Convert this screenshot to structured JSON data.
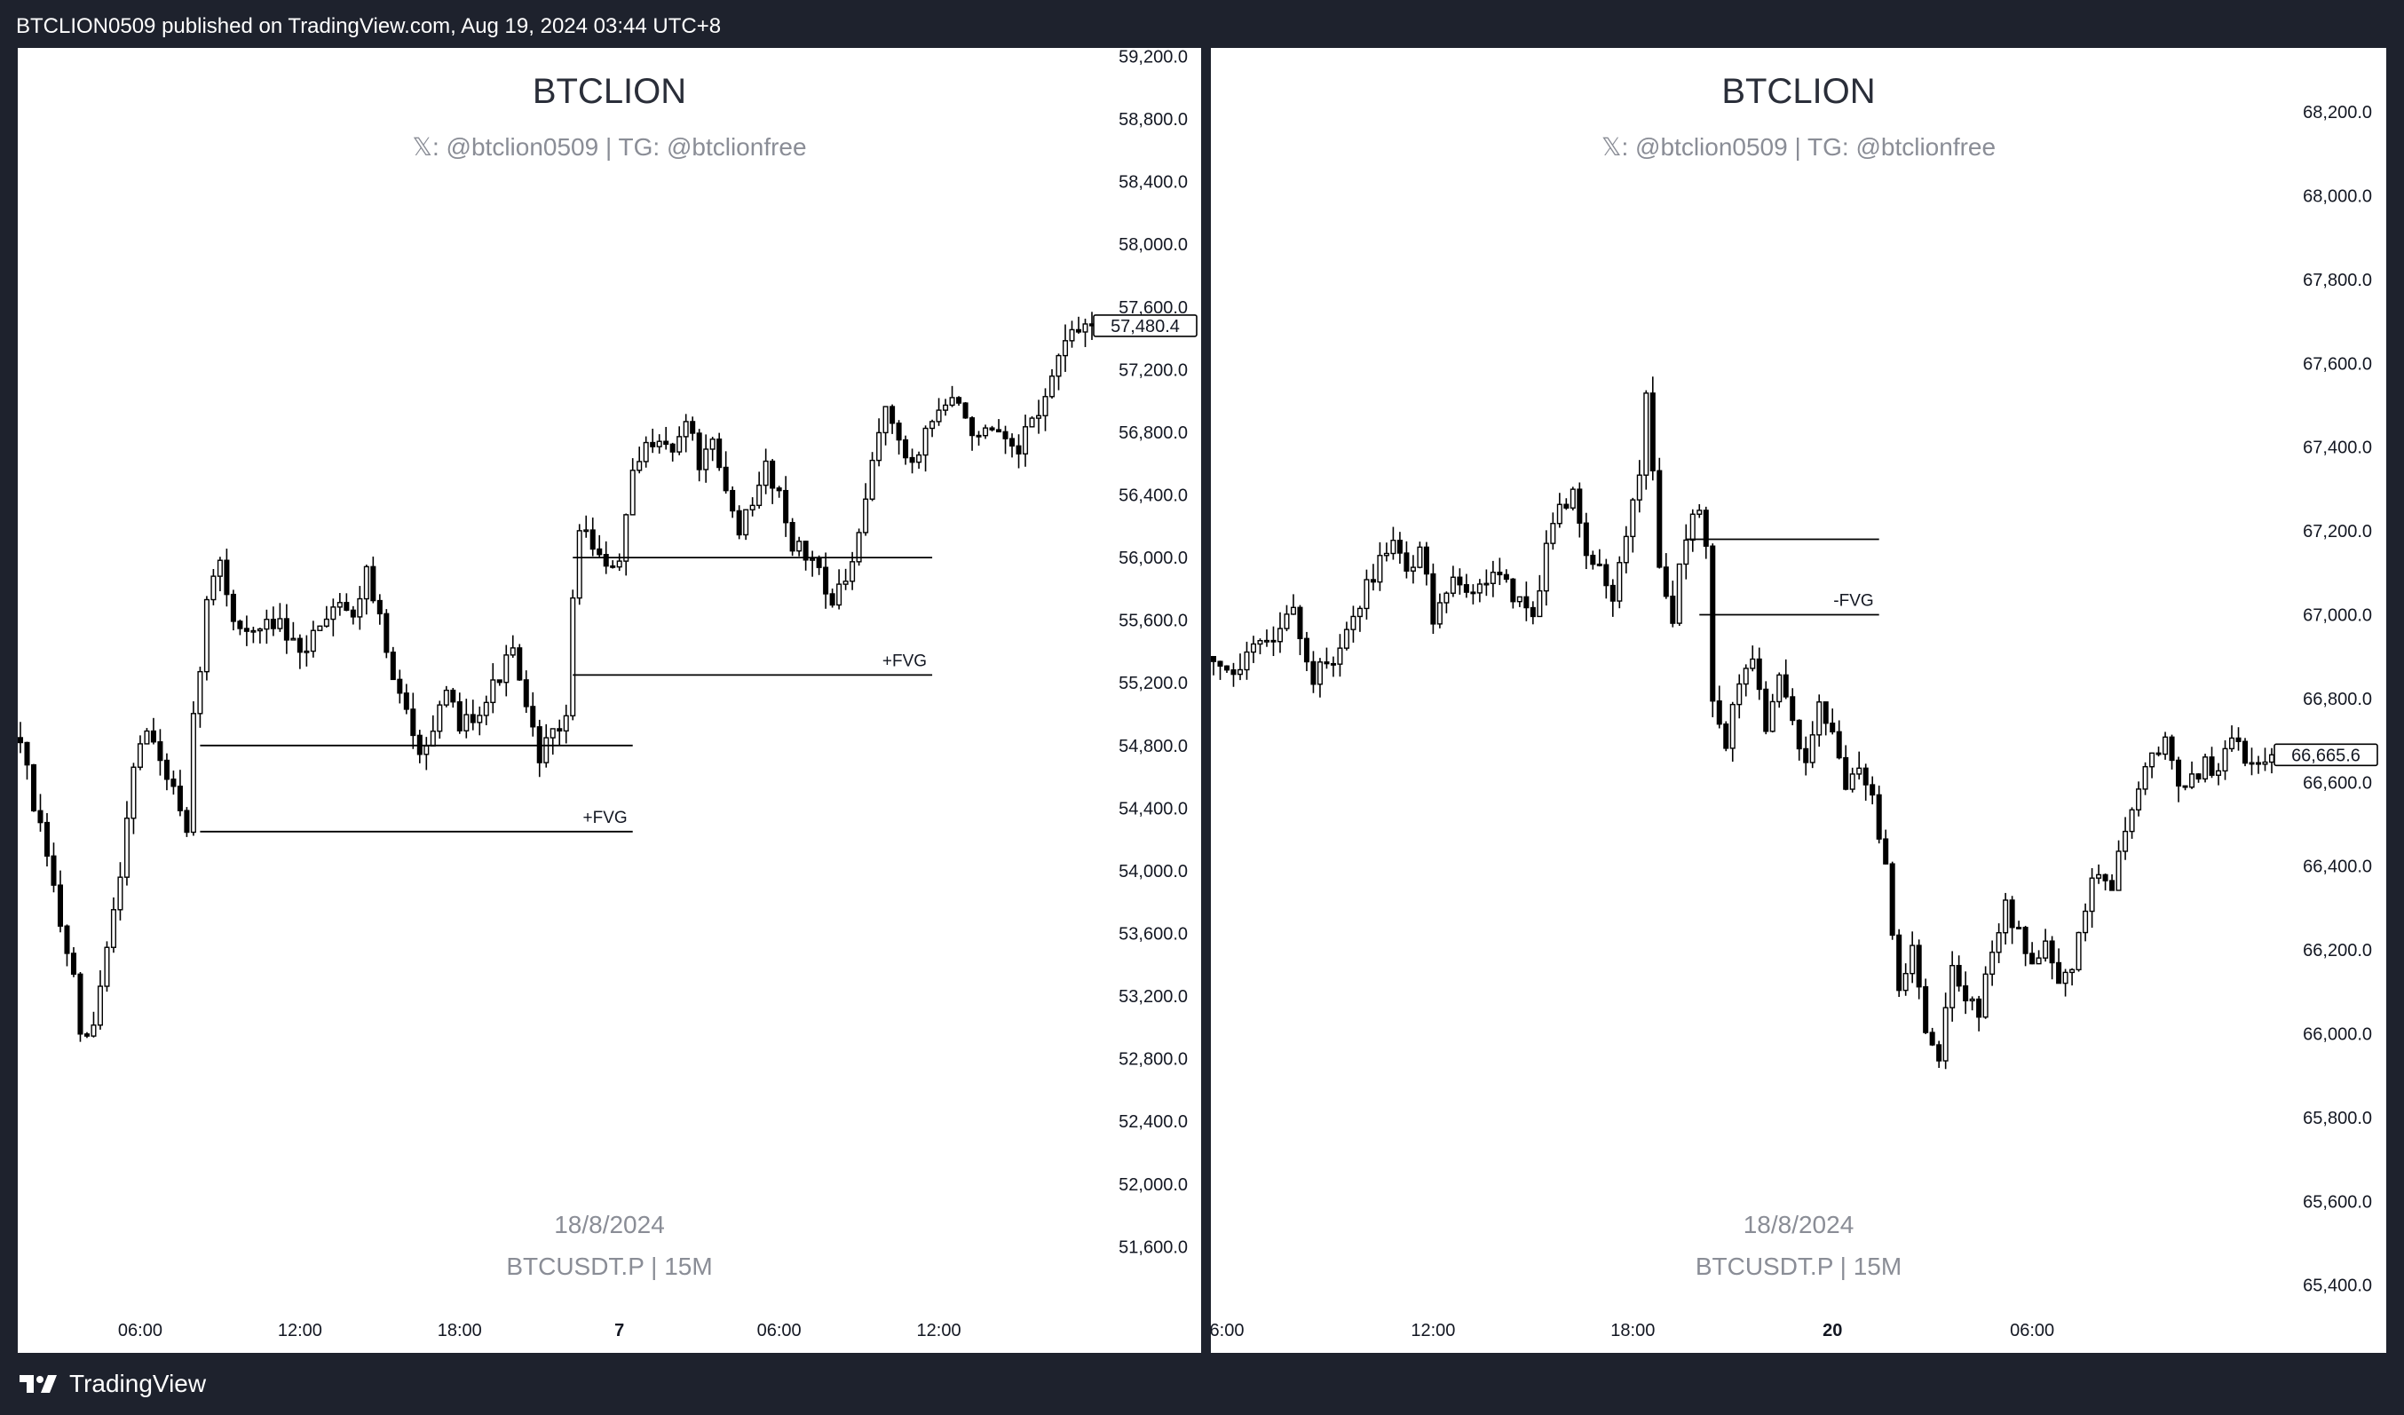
{
  "header": {
    "publish_text": "BTCLION0509 published on TradingView.com, Aug 19, 2024 03:44 UTC+8"
  },
  "footer": {
    "brand": "TradingView",
    "logo_icon": "tradingview-logo-icon"
  },
  "panels": [
    {
      "watermark_title": "BTCLION",
      "watermark_sub": "𝕏: @btclion0509 | TG: @btclionfree",
      "watermark_date": "18/8/2024",
      "watermark_symbol": "BTCUSDT.P | 15M",
      "price_label": "57,480.4",
      "fvg_labels": [
        "+FVG",
        "+FVG"
      ]
    },
    {
      "watermark_title": "BTCLION",
      "watermark_sub": "𝕏: @btclion0509 | TG: @btclionfree",
      "watermark_date": "18/8/2024",
      "watermark_symbol": "BTCUSDT.P | 15M",
      "price_label": "66,665.6",
      "fvg_labels": [
        "-FVG"
      ]
    }
  ],
  "chart_data": [
    {
      "type": "candlestick",
      "symbol": "BTCUSDT.P",
      "timeframe": "15M",
      "y_ticks": [
        "59,200.0",
        "58,800.0",
        "58,400.0",
        "58,000.0",
        "57,600.0",
        "57,200.0",
        "56,800.0",
        "56,400.0",
        "56,000.0",
        "55,600.0",
        "55,200.0",
        "54,800.0",
        "54,400.0",
        "54,000.0",
        "53,600.0",
        "53,200.0",
        "52,800.0",
        "52,400.0",
        "52,000.0",
        "51,600.0"
      ],
      "y_tick_values": [
        59200,
        58800,
        58400,
        58000,
        57600,
        57200,
        56800,
        56400,
        56000,
        55600,
        55200,
        54800,
        54400,
        54000,
        53600,
        53200,
        52800,
        52400,
        52000,
        51600
      ],
      "x_ticks": [
        "06:00",
        "12:00",
        "18:00",
        "7",
        "06:00",
        "12:00"
      ],
      "x_tick_bold": [
        false,
        false,
        false,
        true,
        false,
        false
      ],
      "ylim": [
        51500,
        59220
      ],
      "last_price": 57480.4,
      "bar_count": 162,
      "bar_range": [
        0,
        161
      ],
      "x_tick_bars": [
        18,
        42,
        66,
        90,
        114,
        138
      ],
      "close_path": [
        [
          0,
          54850
        ],
        [
          2,
          54400
        ],
        [
          4,
          54100
        ],
        [
          6,
          53650
        ],
        [
          8,
          53300
        ],
        [
          9,
          52900
        ],
        [
          11,
          53000
        ],
        [
          13,
          53500
        ],
        [
          15,
          54000
        ],
        [
          17,
          54700
        ],
        [
          19,
          54900
        ],
        [
          21,
          54700
        ],
        [
          23,
          54500
        ],
        [
          25,
          54200
        ],
        [
          26,
          54950
        ],
        [
          28,
          55700
        ],
        [
          30,
          56000
        ],
        [
          32,
          55600
        ],
        [
          35,
          55500
        ],
        [
          38,
          55600
        ],
        [
          40,
          55500
        ],
        [
          42,
          55350
        ],
        [
          45,
          55600
        ],
        [
          48,
          55750
        ],
        [
          50,
          55600
        ],
        [
          52,
          55950
        ],
        [
          54,
          55600
        ],
        [
          56,
          55200
        ],
        [
          58,
          55000
        ],
        [
          60,
          54800
        ],
        [
          62,
          54900
        ],
        [
          64,
          55100
        ],
        [
          66,
          54950
        ],
        [
          68,
          55000
        ],
        [
          70,
          55100
        ],
        [
          72,
          55250
        ],
        [
          74,
          55400
        ],
        [
          76,
          55000
        ],
        [
          78,
          54750
        ],
        [
          80,
          54850
        ],
        [
          82,
          55000
        ],
        [
          83,
          55700
        ],
        [
          84,
          56200
        ],
        [
          86,
          56100
        ],
        [
          88,
          55900
        ],
        [
          90,
          56000
        ],
        [
          92,
          56500
        ],
        [
          94,
          56700
        ],
        [
          96,
          56800
        ],
        [
          98,
          56650
        ],
        [
          100,
          56900
        ],
        [
          102,
          56600
        ],
        [
          104,
          56700
        ],
        [
          106,
          56400
        ],
        [
          108,
          56200
        ],
        [
          110,
          56300
        ],
        [
          112,
          56600
        ],
        [
          114,
          56400
        ],
        [
          116,
          56100
        ],
        [
          118,
          56000
        ],
        [
          120,
          55950
        ],
        [
          122,
          55700
        ],
        [
          124,
          55850
        ],
        [
          126,
          56100
        ],
        [
          128,
          56600
        ],
        [
          130,
          57000
        ],
        [
          132,
          56700
        ],
        [
          134,
          56600
        ],
        [
          136,
          56800
        ],
        [
          138,
          56950
        ],
        [
          140,
          57000
        ],
        [
          142,
          56900
        ],
        [
          144,
          56750
        ],
        [
          146,
          56800
        ],
        [
          148,
          56700
        ],
        [
          150,
          56650
        ],
        [
          152,
          56900
        ],
        [
          154,
          57000
        ],
        [
          156,
          57300
        ],
        [
          158,
          57400
        ],
        [
          160,
          57480
        ],
        [
          161,
          57480
        ]
      ],
      "lines": [
        {
          "price": 56000,
          "from_bar": 83,
          "to_bar": 137
        },
        {
          "price": 55250,
          "from_bar": 83,
          "to_bar": 137,
          "label": "+FVG"
        },
        {
          "price": 54800,
          "from_bar": 27,
          "to_bar": 92
        },
        {
          "price": 54250,
          "from_bar": 27,
          "to_bar": 92,
          "label": "+FVG"
        }
      ]
    },
    {
      "type": "candlestick",
      "symbol": "BTCUSDT.P",
      "timeframe": "15M",
      "y_ticks": [
        "68,200.0",
        "68,000.0",
        "67,800.0",
        "67,600.0",
        "67,400.0",
        "67,200.0",
        "67,000.0",
        "66,800.0",
        "66,600.0",
        "66,400.0",
        "66,200.0",
        "66,000.0",
        "65,800.0",
        "65,600.0",
        "65,400.0"
      ],
      "y_tick_values": [
        68200,
        68000,
        67800,
        67600,
        67400,
        67200,
        67000,
        66800,
        66600,
        66400,
        66200,
        66000,
        65800,
        65600,
        65400
      ],
      "x_ticks": [
        "6:00",
        "12:00",
        "18:00",
        "20",
        "06:00"
      ],
      "x_tick_bold": [
        false,
        false,
        false,
        true,
        false
      ],
      "ylim": [
        65340,
        68340
      ],
      "last_price": 66665.6,
      "bar_count": 160,
      "bar_range": [
        0,
        159
      ],
      "x_tick_bars": [
        2,
        33,
        63,
        93,
        123
      ],
      "close_path": [
        [
          0,
          66900
        ],
        [
          3,
          66850
        ],
        [
          6,
          66950
        ],
        [
          9,
          66950
        ],
        [
          12,
          67000
        ],
        [
          15,
          66850
        ],
        [
          18,
          66900
        ],
        [
          21,
          67000
        ],
        [
          24,
          67100
        ],
        [
          27,
          67200
        ],
        [
          29,
          67100
        ],
        [
          31,
          67150
        ],
        [
          33,
          67000
        ],
        [
          36,
          67100
        ],
        [
          39,
          67050
        ],
        [
          42,
          67100
        ],
        [
          45,
          67050
        ],
        [
          48,
          67000
        ],
        [
          50,
          67150
        ],
        [
          52,
          67250
        ],
        [
          54,
          67300
        ],
        [
          56,
          67150
        ],
        [
          58,
          67100
        ],
        [
          60,
          67050
        ],
        [
          62,
          67200
        ],
        [
          64,
          67350
        ],
        [
          65,
          67550
        ],
        [
          67,
          67100
        ],
        [
          69,
          67000
        ],
        [
          71,
          67200
        ],
        [
          73,
          67250
        ],
        [
          74,
          67150
        ],
        [
          75,
          66800
        ],
        [
          77,
          66700
        ],
        [
          79,
          66850
        ],
        [
          81,
          66900
        ],
        [
          83,
          66700
        ],
        [
          85,
          66850
        ],
        [
          87,
          66750
        ],
        [
          89,
          66650
        ],
        [
          91,
          66800
        ],
        [
          93,
          66700
        ],
        [
          95,
          66600
        ],
        [
          97,
          66650
        ],
        [
          99,
          66550
        ],
        [
          101,
          66400
        ],
        [
          103,
          66100
        ],
        [
          105,
          66200
        ],
        [
          107,
          66000
        ],
        [
          109,
          65950
        ],
        [
          111,
          66150
        ],
        [
          113,
          66100
        ],
        [
          115,
          66050
        ],
        [
          117,
          66200
        ],
        [
          119,
          66300
        ],
        [
          121,
          66250
        ],
        [
          123,
          66150
        ],
        [
          125,
          66200
        ],
        [
          127,
          66100
        ],
        [
          129,
          66150
        ],
        [
          131,
          66300
        ],
        [
          133,
          66400
        ],
        [
          135,
          66350
        ],
        [
          137,
          66500
        ],
        [
          139,
          66600
        ],
        [
          141,
          66650
        ],
        [
          143,
          66700
        ],
        [
          145,
          66600
        ],
        [
          147,
          66600
        ],
        [
          149,
          66650
        ],
        [
          151,
          66620
        ],
        [
          153,
          66700
        ],
        [
          156,
          66650
        ],
        [
          159,
          66665
        ]
      ],
      "lines": [
        {
          "price": 67180,
          "from_bar": 71,
          "to_bar": 100
        },
        {
          "price": 67000,
          "from_bar": 73,
          "to_bar": 100,
          "label": "-FVG"
        }
      ]
    }
  ]
}
